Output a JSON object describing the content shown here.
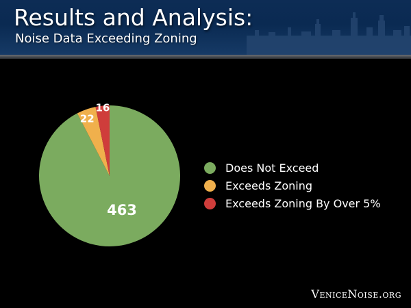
{
  "header": {
    "title": "Results and Analysis:",
    "subtitle": "Noise Data Exceeding Zoning"
  },
  "footer": {
    "site": "VeniceNoise.org"
  },
  "chart_data": {
    "type": "pie",
    "title": "",
    "slices": [
      {
        "label": "Does Not Exceed",
        "value": 463,
        "color": "#7bab5f"
      },
      {
        "label": "Exceeds Zoning",
        "value": 22,
        "color": "#f0b04c"
      },
      {
        "label": "Exceeds Zoning By Over 5%",
        "value": 16,
        "color": "#cf3d3b"
      }
    ],
    "legend_position": "right"
  }
}
